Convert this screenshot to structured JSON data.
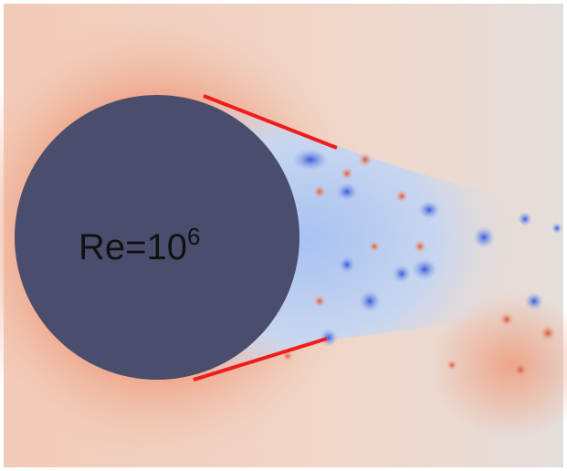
{
  "label": {
    "base": "Re=10",
    "exponent": "6"
  }
}
